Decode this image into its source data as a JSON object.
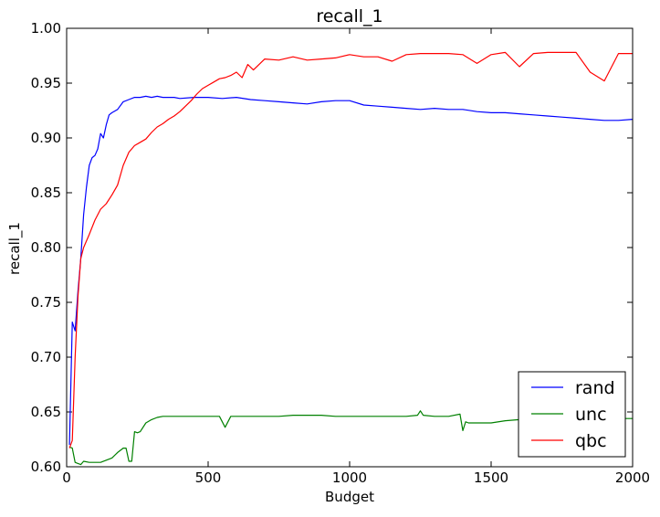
{
  "chart_data": {
    "type": "line",
    "title": "recall_1",
    "xlabel": "Budget",
    "ylabel": "recall_1",
    "xlim": [
      0,
      2000
    ],
    "ylim": [
      0.6,
      1.0
    ],
    "xticks": [
      0,
      500,
      1000,
      1500,
      2000
    ],
    "xtick_labels": [
      "0",
      "500",
      "1000",
      "1500",
      "2000"
    ],
    "yticks": [
      0.6,
      0.65,
      0.7,
      0.75,
      0.8,
      0.85,
      0.9,
      0.95,
      1.0
    ],
    "ytick_labels": [
      "0.60",
      "0.65",
      "0.70",
      "0.75",
      "0.80",
      "0.85",
      "0.90",
      "0.95",
      "1.00"
    ],
    "grid": false,
    "legend_position": "bottom-right",
    "series": [
      {
        "name": "rand",
        "color": "#0000ff",
        "x": [
          10,
          20,
          30,
          40,
          50,
          60,
          70,
          80,
          90,
          100,
          110,
          120,
          130,
          140,
          150,
          160,
          180,
          200,
          220,
          240,
          260,
          280,
          300,
          320,
          340,
          360,
          380,
          400,
          450,
          500,
          550,
          600,
          650,
          700,
          750,
          800,
          850,
          900,
          950,
          1000,
          1050,
          1100,
          1150,
          1200,
          1250,
          1300,
          1350,
          1400,
          1450,
          1500,
          1550,
          1600,
          1650,
          1700,
          1750,
          1800,
          1850,
          1900,
          1950,
          2000
        ],
        "y": [
          0.62,
          0.732,
          0.724,
          0.76,
          0.79,
          0.83,
          0.855,
          0.875,
          0.882,
          0.884,
          0.89,
          0.904,
          0.9,
          0.912,
          0.921,
          0.923,
          0.926,
          0.933,
          0.935,
          0.937,
          0.937,
          0.938,
          0.937,
          0.938,
          0.937,
          0.937,
          0.937,
          0.936,
          0.937,
          0.937,
          0.936,
          0.937,
          0.935,
          0.934,
          0.933,
          0.932,
          0.931,
          0.933,
          0.934,
          0.934,
          0.93,
          0.929,
          0.928,
          0.927,
          0.926,
          0.927,
          0.926,
          0.926,
          0.924,
          0.923,
          0.923,
          0.922,
          0.921,
          0.92,
          0.919,
          0.918,
          0.917,
          0.916,
          0.916,
          0.917
        ]
      },
      {
        "name": "unc",
        "color": "#008000",
        "x": [
          10,
          20,
          30,
          40,
          50,
          60,
          80,
          100,
          120,
          140,
          160,
          180,
          200,
          210,
          220,
          230,
          240,
          250,
          260,
          280,
          300,
          320,
          340,
          360,
          400,
          450,
          500,
          540,
          560,
          580,
          600,
          650,
          700,
          750,
          800,
          850,
          900,
          950,
          1000,
          1050,
          1100,
          1150,
          1200,
          1240,
          1250,
          1260,
          1300,
          1350,
          1390,
          1400,
          1410,
          1420,
          1450,
          1500,
          1550,
          1600,
          1650,
          1700,
          1750,
          1800,
          1850,
          1900,
          1950,
          2000
        ],
        "y": [
          0.618,
          0.617,
          0.604,
          0.603,
          0.602,
          0.605,
          0.604,
          0.604,
          0.604,
          0.606,
          0.608,
          0.613,
          0.617,
          0.617,
          0.605,
          0.605,
          0.632,
          0.631,
          0.632,
          0.64,
          0.643,
          0.645,
          0.646,
          0.646,
          0.646,
          0.646,
          0.646,
          0.646,
          0.636,
          0.646,
          0.646,
          0.646,
          0.646,
          0.646,
          0.647,
          0.647,
          0.647,
          0.646,
          0.646,
          0.646,
          0.646,
          0.646,
          0.646,
          0.647,
          0.651,
          0.647,
          0.646,
          0.646,
          0.648,
          0.633,
          0.641,
          0.64,
          0.64,
          0.64,
          0.642,
          0.643,
          0.643,
          0.643,
          0.643,
          0.644,
          0.644,
          0.644,
          0.644,
          0.644
        ]
      },
      {
        "name": "qbc",
        "color": "#ff0000",
        "x": [
          10,
          20,
          30,
          40,
          50,
          60,
          80,
          100,
          120,
          140,
          160,
          180,
          200,
          220,
          240,
          260,
          280,
          300,
          320,
          340,
          360,
          380,
          400,
          420,
          440,
          460,
          480,
          500,
          520,
          540,
          560,
          580,
          600,
          620,
          640,
          660,
          700,
          750,
          800,
          850,
          900,
          950,
          1000,
          1050,
          1100,
          1150,
          1200,
          1250,
          1300,
          1350,
          1400,
          1450,
          1500,
          1550,
          1600,
          1650,
          1700,
          1750,
          1800,
          1850,
          1900,
          1950,
          2000
        ],
        "y": [
          0.617,
          0.624,
          0.7,
          0.755,
          0.79,
          0.8,
          0.812,
          0.825,
          0.835,
          0.84,
          0.848,
          0.857,
          0.875,
          0.887,
          0.893,
          0.896,
          0.899,
          0.905,
          0.91,
          0.913,
          0.917,
          0.92,
          0.924,
          0.929,
          0.934,
          0.94,
          0.945,
          0.948,
          0.951,
          0.954,
          0.955,
          0.957,
          0.96,
          0.955,
          0.967,
          0.962,
          0.972,
          0.971,
          0.974,
          0.971,
          0.972,
          0.973,
          0.976,
          0.974,
          0.974,
          0.97,
          0.976,
          0.977,
          0.977,
          0.977,
          0.976,
          0.968,
          0.976,
          0.978,
          0.965,
          0.977,
          0.978,
          0.978,
          0.978,
          0.96,
          0.952,
          0.977,
          0.977
        ]
      }
    ]
  }
}
